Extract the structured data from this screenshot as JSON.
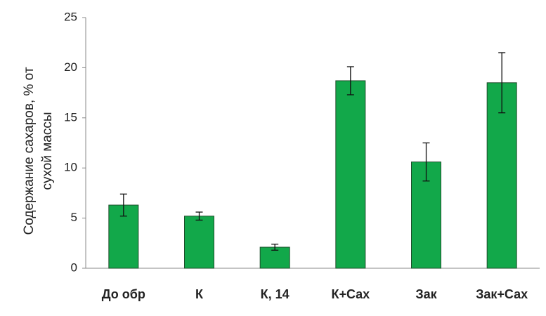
{
  "chart_data": {
    "type": "bar",
    "ylabel": [
      "Содержание сахаров, % от",
      "сухой массы"
    ],
    "categories": [
      "До обр",
      "К",
      "К, 14",
      "К+Сах",
      "Зак",
      "Зак+Сах"
    ],
    "values": [
      6.3,
      5.2,
      2.1,
      18.7,
      10.6,
      18.5
    ],
    "errors": [
      1.1,
      0.4,
      0.3,
      1.4,
      1.9,
      3.0
    ],
    "color": "#12a84a",
    "ylim": [
      0,
      25
    ],
    "yticks": [
      0,
      5,
      10,
      15,
      20,
      25
    ],
    "grid": false
  }
}
